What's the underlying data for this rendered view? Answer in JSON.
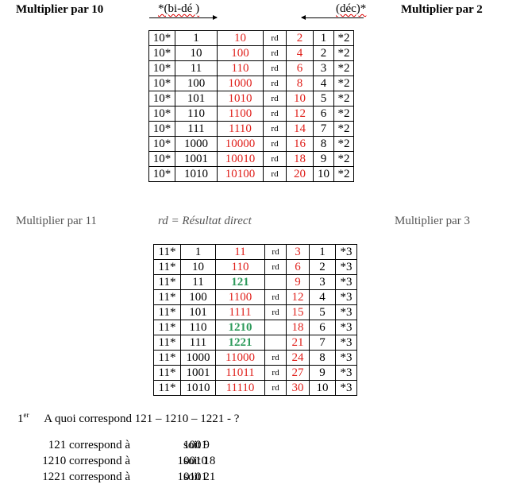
{
  "header": {
    "left_title": "Multiplier par 10",
    "left_arrow_label": "*(bi-dé )",
    "right_arrow_label": "(déc)*",
    "right_title": "Multiplier par 2"
  },
  "table1": [
    [
      "10*",
      "1",
      "10",
      "rd",
      "2",
      "1",
      "*2"
    ],
    [
      "10*",
      "10",
      "100",
      "rd",
      "4",
      "2",
      "*2"
    ],
    [
      "10*",
      "11",
      "110",
      "rd",
      "6",
      "3",
      "*2"
    ],
    [
      "10*",
      "100",
      "1000",
      "rd",
      "8",
      "4",
      "*2"
    ],
    [
      "10*",
      "101",
      "1010",
      "rd",
      "10",
      "5",
      "*2"
    ],
    [
      "10*",
      "110",
      "1100",
      "rd",
      "12",
      "6",
      "*2"
    ],
    [
      "10*",
      "111",
      "1110",
      "rd",
      "14",
      "7",
      "*2"
    ],
    [
      "10*",
      "1000",
      "10000",
      "rd",
      "16",
      "8",
      "*2"
    ],
    [
      "10*",
      "1001",
      "10010",
      "rd",
      "18",
      "9",
      "*2"
    ],
    [
      "10*",
      "1010",
      "10100",
      "rd",
      "20",
      "10",
      "*2"
    ]
  ],
  "middle": {
    "left_title": "Multiplier par 11",
    "legend": "rd = Résultat direct",
    "right_title": "Multiplier par 3"
  },
  "table2": [
    [
      "11*",
      "1",
      "11",
      "rd",
      "3",
      "1",
      "*3"
    ],
    [
      "11*",
      "10",
      "110",
      "rd",
      "6",
      "2",
      "*3"
    ],
    [
      "11*",
      "11",
      "121",
      "",
      "9",
      "3",
      "*3"
    ],
    [
      "11*",
      "100",
      "1100",
      "rd",
      "12",
      "4",
      "*3"
    ],
    [
      "11*",
      "101",
      "1111",
      "rd",
      "15",
      "5",
      "*3"
    ],
    [
      "11*",
      "110",
      "1210",
      "",
      "18",
      "6",
      "*3"
    ],
    [
      "11*",
      "111",
      "1221",
      "",
      "21",
      "7",
      "*3"
    ],
    [
      "11*",
      "1000",
      "11000",
      "rd",
      "24",
      "8",
      "*3"
    ],
    [
      "11*",
      "1001",
      "11011",
      "rd",
      "27",
      "9",
      "*3"
    ],
    [
      "11*",
      "1010",
      "11110",
      "rd",
      "30",
      "10",
      "*3"
    ]
  ],
  "table2_highlight_rows": [
    2,
    5,
    6
  ],
  "colors": {
    "red": "#e0201b",
    "green": "#2e9a5b"
  },
  "question": {
    "number": "1",
    "superscript": "er",
    "text": "A quoi correspond 121 – 1210 – 1221 - ?"
  },
  "answers": [
    {
      "a": "121 correspond à",
      "b": "1001",
      "c": "soit  9"
    },
    {
      "a": "1210 correspond à",
      "b": "10010",
      "c": "soit 18"
    },
    {
      "a": "1221 correspond à",
      "b": "10101",
      "c": "soit 21"
    }
  ]
}
